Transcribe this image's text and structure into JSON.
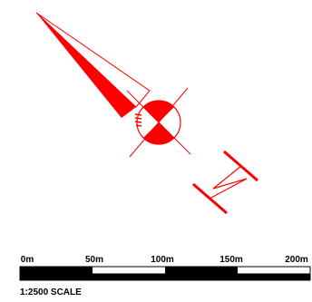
{
  "colors": {
    "feature": "#ff0000",
    "scale_dark": "#000000",
    "scale_light": "#ffffff",
    "background": "#ffffff"
  },
  "scale_bar": {
    "labels": [
      "0m",
      "50m",
      "100m",
      "150m",
      "200m"
    ],
    "title": "1:2500 SCALE"
  },
  "features": [
    {
      "name": "wedge-arrow",
      "icon": "narrow-triangle-pointer"
    },
    {
      "name": "control-circle",
      "icon": "crossed-circle-quadrant-fill"
    },
    {
      "name": "z-fold-symbol",
      "icon": "zigzag-line-with-end-bars"
    }
  ]
}
